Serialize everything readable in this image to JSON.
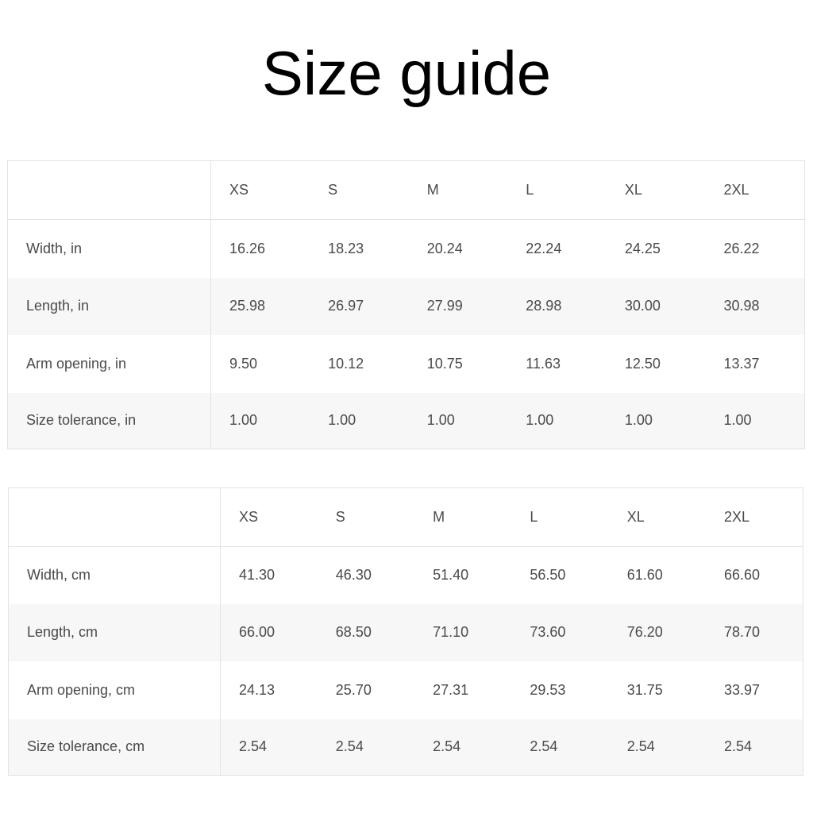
{
  "title": "Size guide",
  "tables": [
    {
      "sizes": [
        "XS",
        "S",
        "M",
        "L",
        "XL",
        "2XL"
      ],
      "rows": [
        {
          "label": "Width, in",
          "values": [
            "16.26",
            "18.23",
            "20.24",
            "22.24",
            "24.25",
            "26.22"
          ]
        },
        {
          "label": "Length, in",
          "values": [
            "25.98",
            "26.97",
            "27.99",
            "28.98",
            "30.00",
            "30.98"
          ]
        },
        {
          "label": "Arm opening, in",
          "values": [
            "9.50",
            "10.12",
            "10.75",
            "11.63",
            "12.50",
            "13.37"
          ]
        },
        {
          "label": "Size tolerance, in",
          "values": [
            "1.00",
            "1.00",
            "1.00",
            "1.00",
            "1.00",
            "1.00"
          ]
        }
      ]
    },
    {
      "sizes": [
        "XS",
        "S",
        "M",
        "L",
        "XL",
        "2XL"
      ],
      "rows": [
        {
          "label": "Width, cm",
          "values": [
            "41.30",
            "46.30",
            "51.40",
            "56.50",
            "61.60",
            "66.60"
          ]
        },
        {
          "label": "Length, cm",
          "values": [
            "66.00",
            "68.50",
            "71.10",
            "73.60",
            "76.20",
            "78.70"
          ]
        },
        {
          "label": "Arm opening, cm",
          "values": [
            "24.13",
            "25.70",
            "27.31",
            "29.53",
            "31.75",
            "33.97"
          ]
        },
        {
          "label": "Size tolerance, cm",
          "values": [
            "2.54",
            "2.54",
            "2.54",
            "2.54",
            "2.54",
            "2.54"
          ]
        }
      ]
    }
  ]
}
